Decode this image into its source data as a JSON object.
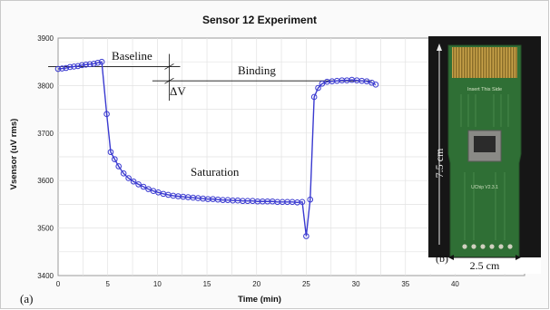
{
  "chart_data": {
    "type": "line",
    "title": "Sensor 12 Experiment",
    "xlabel": "Time (min)",
    "ylabel": "Vsensor (uV rms)",
    "xlim": [
      0,
      47
    ],
    "ylim": [
      3400,
      3900
    ],
    "xticks": [
      0,
      5,
      10,
      15,
      20,
      25,
      30,
      35,
      40
    ],
    "yticks": [
      3400,
      3500,
      3600,
      3700,
      3800,
      3900
    ],
    "grid": true,
    "series": [
      {
        "color": "#3a3ad0",
        "x": [
          0.0,
          0.4,
          0.8,
          1.2,
          1.6,
          2.0,
          2.4,
          2.8,
          3.2,
          3.6,
          4.0,
          4.4,
          4.9,
          5.3,
          5.7,
          6.1,
          6.6,
          7.1,
          7.6,
          8.1,
          8.6,
          9.1,
          9.6,
          10.1,
          10.6,
          11.1,
          11.6,
          12.1,
          12.6,
          13.1,
          13.6,
          14.1,
          14.6,
          15.1,
          15.6,
          16.1,
          16.6,
          17.1,
          17.6,
          18.1,
          18.6,
          19.1,
          19.6,
          20.1,
          20.6,
          21.1,
          21.6,
          22.1,
          22.6,
          23.1,
          23.6,
          24.1,
          24.6,
          25.0,
          25.4,
          25.8,
          26.2,
          26.6,
          27.1,
          27.6,
          28.1,
          28.6,
          29.1,
          29.6,
          30.1,
          30.6,
          31.1,
          31.6,
          32.0
        ],
        "y": [
          3835,
          3836,
          3837,
          3839,
          3840,
          3841,
          3843,
          3844,
          3845,
          3846,
          3848,
          3850,
          3740,
          3660,
          3645,
          3630,
          3615,
          3605,
          3598,
          3592,
          3587,
          3582,
          3578,
          3575,
          3572,
          3570,
          3568,
          3567,
          3566,
          3565,
          3564,
          3563,
          3562,
          3561,
          3561,
          3560,
          3559,
          3559,
          3558,
          3558,
          3557,
          3557,
          3557,
          3556,
          3556,
          3556,
          3556,
          3555,
          3555,
          3555,
          3555,
          3554,
          3555,
          3483,
          3560,
          3776,
          3795,
          3804,
          3808,
          3809,
          3810,
          3811,
          3811,
          3812,
          3811,
          3810,
          3809,
          3806,
          3802
        ]
      }
    ],
    "annotations": {
      "baseline": "Baseline",
      "binding": "Binding",
      "saturation": "Saturation",
      "delta_v": "ΔV"
    },
    "reference_lines": {
      "baseline_level": 3840,
      "binding_level": 3810
    }
  },
  "panel_labels": {
    "a": "(a)",
    "b": "(b)"
  },
  "photo": {
    "chip_text_top": "Insert This Side",
    "chip_text_mid": "UChip V2.3.1",
    "height_label": "7.5 cm",
    "width_label": "2.5 cm"
  }
}
